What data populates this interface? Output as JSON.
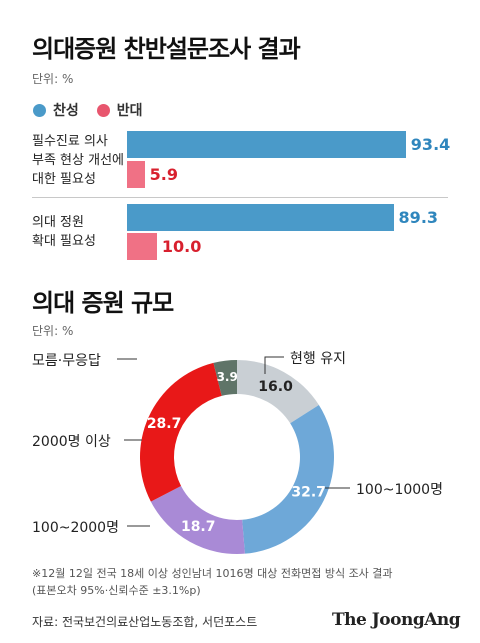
{
  "chart_data": [
    {
      "type": "bar",
      "title": "의대증원 찬반설문조사 결과",
      "unit": "단위: %",
      "legend": [
        {
          "label": "찬성",
          "color": "#4a9ac9"
        },
        {
          "label": "반대",
          "color": "#e8566e"
        }
      ],
      "categories": [
        [
          "필수진료 의사",
          "부족 현상 개선에",
          "대한 필요성"
        ],
        [
          "의대 정원",
          "확대 필요성"
        ]
      ],
      "series": [
        {
          "name": "찬성",
          "color": "#4a9ac9",
          "label_color": "#2f86bd",
          "values": [
            93.4,
            89.3
          ]
        },
        {
          "name": "반대",
          "color": "#f07185",
          "label_color": "#d8202e",
          "values": [
            5.9,
            10.0
          ]
        }
      ],
      "value_labels": [
        [
          "93.4",
          "89.3"
        ],
        [
          "5.9",
          "10.0"
        ]
      ],
      "xlim": [
        0,
        100
      ]
    },
    {
      "type": "pie",
      "title": "의대 증원 규모",
      "unit": "단위: %",
      "slices": [
        {
          "label": "현행 유지",
          "value": 16.0,
          "value_label": "16.0",
          "color": "#c9cfd4",
          "text_color": "#222222"
        },
        {
          "label": "100~1000명",
          "value": 32.7,
          "value_label": "32.7",
          "color": "#6ea8d8",
          "text_color": "#ffffff"
        },
        {
          "label": "100~2000명",
          "value": 18.7,
          "value_label": "18.7",
          "color": "#a98ad6",
          "text_color": "#ffffff"
        },
        {
          "label": "2000명 이상",
          "value": 28.7,
          "value_label": "28.7",
          "color": "#e81818",
          "text_color": "#ffffff"
        },
        {
          "label": "모름·무응답",
          "value": 3.9,
          "value_label": "3.9",
          "color": "#5f7468",
          "text_color": "#ffffff"
        }
      ]
    }
  ],
  "footnote": [
    "※12월 12일 전국 18세 이상 성인남녀 1016명 대상 전화면접 방식 조사 결과",
    "(표본오차 95%·신뢰수준 ±3.1%p)"
  ],
  "source": "자료: 전국보건의료산업노동조합, 서던포스트",
  "logo": "The JoongAng"
}
